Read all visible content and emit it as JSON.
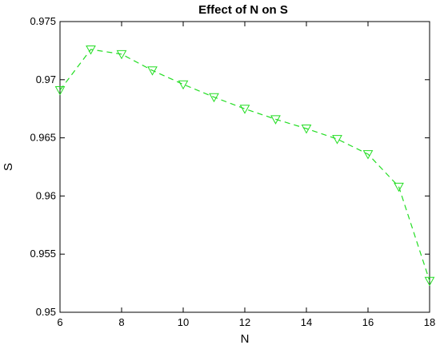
{
  "colors": {
    "series": "#22dd22",
    "axis": "#000000",
    "background": "#ffffff"
  },
  "chart_data": {
    "type": "line",
    "title": "Effect of N on S",
    "xlabel": "N",
    "ylabel": "S",
    "xlim": [
      6,
      18
    ],
    "ylim": [
      0.95,
      0.975
    ],
    "xticks": [
      6,
      8,
      10,
      12,
      14,
      16,
      18
    ],
    "yticks": [
      0.95,
      0.955,
      0.96,
      0.965,
      0.97,
      0.975
    ],
    "xtick_labels": [
      "6",
      "8",
      "10",
      "12",
      "14",
      "16",
      "18"
    ],
    "ytick_labels": [
      "0.95",
      "0.955",
      "0.96",
      "0.965",
      "0.97",
      "0.975"
    ],
    "grid": false,
    "legend": "none",
    "series": [
      {
        "marker": "triangle-down",
        "line_style": "dashed",
        "x": [
          6,
          7,
          8,
          9,
          10,
          11,
          12,
          13,
          14,
          15,
          16,
          17,
          18
        ],
        "y": [
          0.9691,
          0.9726,
          0.9722,
          0.9708,
          0.9696,
          0.9685,
          0.9675,
          0.9666,
          0.9658,
          0.9649,
          0.9636,
          0.9608,
          0.9527
        ]
      }
    ]
  }
}
